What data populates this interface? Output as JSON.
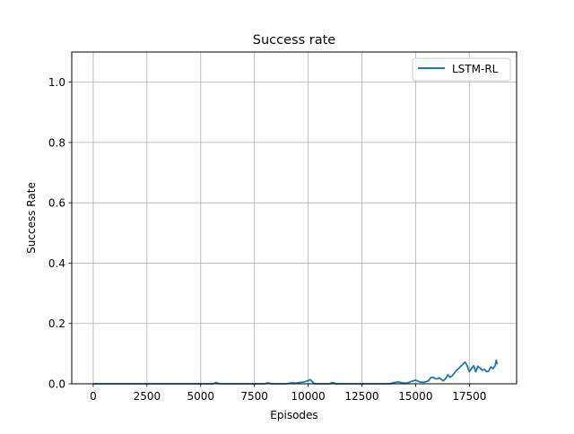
{
  "chart_data": {
    "type": "line",
    "title": "Success rate",
    "xlabel": "Episodes",
    "ylabel": "Success Rate",
    "xlim": [
      -1000,
      19700
    ],
    "ylim": [
      0.0,
      1.1
    ],
    "xticks": [
      0,
      2500,
      5000,
      7500,
      10000,
      12500,
      15000,
      17500
    ],
    "xtick_labels": [
      "0",
      "2500",
      "5000",
      "7500",
      "10000",
      "12500",
      "15000",
      "17500"
    ],
    "yticks": [
      0.0,
      0.2,
      0.4,
      0.6,
      0.8,
      1.0
    ],
    "ytick_labels": [
      "0.0",
      "0.2",
      "0.4",
      "0.6",
      "0.8",
      "1.0"
    ],
    "grid": true,
    "legend_position": "top-right",
    "series": [
      {
        "name": "LSTM-RL",
        "color": "#1f77b4",
        "x": [
          0,
          1000,
          2000,
          3000,
          4000,
          5000,
          5600,
          5700,
          5800,
          5900,
          6000,
          7000,
          8000,
          8100,
          8200,
          8300,
          8400,
          9000,
          9200,
          9400,
          9600,
          9800,
          10000,
          10100,
          10200,
          10300,
          10400,
          10600,
          10800,
          11000,
          11100,
          11200,
          11300,
          11500,
          12000,
          12500,
          13000,
          13500,
          13800,
          14000,
          14200,
          14400,
          14600,
          14800,
          15000,
          15200,
          15400,
          15600,
          15700,
          15800,
          15900,
          16000,
          16100,
          16200,
          16300,
          16400,
          16500,
          16600,
          16700,
          16800,
          16900,
          17000,
          17100,
          17200,
          17300,
          17400,
          17500,
          17600,
          17700,
          17800,
          17900,
          18000,
          18100,
          18200,
          18300,
          18400,
          18500,
          18600,
          18700,
          18750,
          18800
        ],
        "y": [
          0.0,
          0.0,
          0.0,
          0.0,
          0.0,
          0.0,
          0.0,
          0.004,
          0.002,
          0.0,
          0.0,
          0.0,
          0.0,
          0.003,
          0.002,
          0.0,
          0.0,
          0.0,
          0.003,
          0.002,
          0.004,
          0.006,
          0.01,
          0.014,
          0.006,
          0.0,
          0.0,
          0.0,
          0.0,
          0.0,
          0.004,
          0.003,
          0.0,
          0.0,
          0.0,
          0.0,
          0.0,
          0.0,
          0.0,
          0.004,
          0.006,
          0.003,
          0.002,
          0.008,
          0.012,
          0.006,
          0.005,
          0.01,
          0.02,
          0.022,
          0.018,
          0.016,
          0.02,
          0.014,
          0.01,
          0.018,
          0.03,
          0.022,
          0.026,
          0.035,
          0.045,
          0.05,
          0.058,
          0.065,
          0.072,
          0.06,
          0.04,
          0.05,
          0.06,
          0.04,
          0.058,
          0.052,
          0.045,
          0.048,
          0.04,
          0.042,
          0.056,
          0.05,
          0.06,
          0.078,
          0.065
        ]
      }
    ]
  }
}
